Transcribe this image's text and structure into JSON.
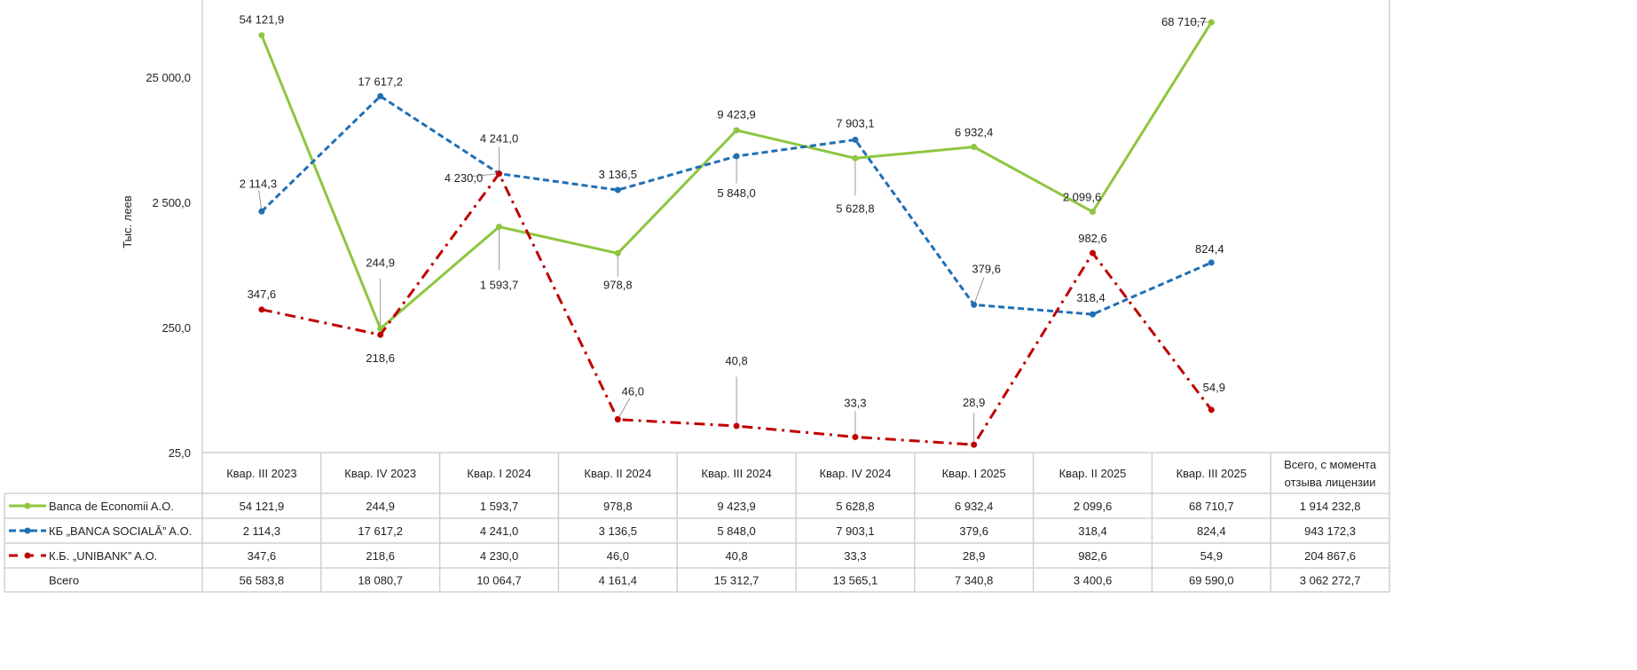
{
  "chart_data": {
    "type": "line",
    "ylabel": "Тыс. леев",
    "yscale": "log",
    "ylim": [
      25,
      103000
    ],
    "yticks": [
      25,
      250,
      2500,
      25000
    ],
    "ytick_labels": [
      "25,0",
      "250,0",
      "2 500,0",
      "25 000,0"
    ],
    "categories": [
      "Квар. III 2023",
      "Квар. IV 2023",
      "Квар. I 2024",
      "Квар. II 2024",
      "Квар. III 2024",
      "Квар. IV 2024",
      "Квар. I 2025",
      "Квар. II 2025",
      "Квар. III 2025"
    ],
    "total_header": "Всего, с момента отзыва лицензии",
    "series": [
      {
        "name": "Banca de Economii A.O.",
        "color": "#8dc63f",
        "style": "solid",
        "values": [
          54121.9,
          244.9,
          1593.7,
          978.8,
          9423.9,
          5628.8,
          6932.4,
          2099.6,
          68710.7
        ],
        "labels": [
          "54 121,9",
          "244,9",
          "1 593,7",
          "978,8",
          "9 423,9",
          "5 628,8",
          "6 932,4",
          "2 099,6",
          "68 710,7"
        ],
        "total": "1 914 232,8"
      },
      {
        "name": "КБ „BANCA SOCIALĂ” A.O.",
        "color": "#1f6fb5",
        "style": "dash",
        "values": [
          2114.3,
          17617.2,
          4241.0,
          3136.5,
          5848.0,
          7903.1,
          379.6,
          318.4,
          824.4
        ],
        "labels": [
          "2 114,3",
          "17 617,2",
          "4 241,0",
          "3 136,5",
          "5 848,0",
          "7 903,1",
          "379,6",
          "318,4",
          "824,4"
        ],
        "total": "943 172,3"
      },
      {
        "name": "К.Б. „UNIBANK” A.O.",
        "color": "#c00000",
        "style": "dashdot",
        "values": [
          347.6,
          218.6,
          4230.0,
          46.0,
          40.8,
          33.3,
          28.9,
          982.6,
          54.9
        ],
        "labels": [
          "347,6",
          "218,6",
          "4 230,0",
          "46,0",
          "40,8",
          "33,3",
          "28,9",
          "982,6",
          "54,9"
        ],
        "total": "204 867,6"
      }
    ],
    "totals_row": {
      "name": "Всего",
      "labels": [
        "56 583,8",
        "18 080,7",
        "10 064,7",
        "4 161,4",
        "15 312,7",
        "13 565,1",
        "7 340,8",
        "3 400,6",
        "69 590,0"
      ],
      "total": "3 062 272,7"
    }
  }
}
